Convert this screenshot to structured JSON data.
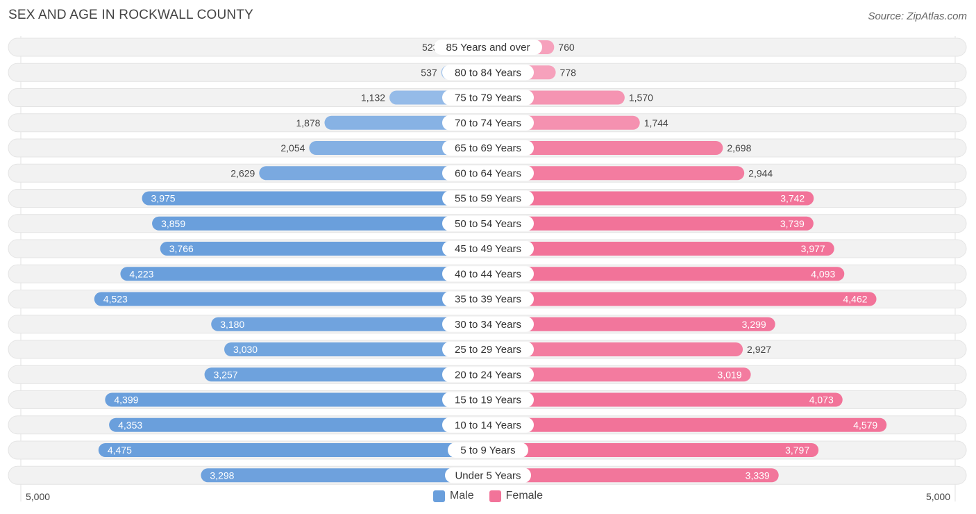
{
  "header": {
    "title": "SEX AND AGE IN ROCKWALL COUNTY",
    "source": "Source: ZipAtlas.com"
  },
  "legend": {
    "male": "Male",
    "female": "Female"
  },
  "axis": {
    "left": "5,000",
    "right": "5,000"
  },
  "colors": {
    "male_strong": "#6a9fdc",
    "male_light": "#a9c8ee",
    "female_strong": "#f27399",
    "female_light": "#f7aec6",
    "row_bg": "#f2f2f2",
    "label_bg": "#ffffff"
  },
  "chart_data": {
    "type": "bar",
    "orientation": "horizontal-diverging",
    "xlim": [
      -5000,
      5000
    ],
    "categories": [
      "85 Years and over",
      "80 to 84 Years",
      "75 to 79 Years",
      "70 to 74 Years",
      "65 to 69 Years",
      "60 to 64 Years",
      "55 to 59 Years",
      "50 to 54 Years",
      "45 to 49 Years",
      "40 to 44 Years",
      "35 to 39 Years",
      "30 to 34 Years",
      "25 to 29 Years",
      "20 to 24 Years",
      "15 to 19 Years",
      "10 to 14 Years",
      "5 to 9 Years",
      "Under 5 Years"
    ],
    "series": [
      {
        "name": "Male",
        "values": [
          523,
          537,
          1132,
          1878,
          2054,
          2629,
          3975,
          3859,
          3766,
          4223,
          4523,
          3180,
          3030,
          3257,
          4399,
          4353,
          4475,
          3298
        ],
        "labels": [
          "523",
          "537",
          "1,132",
          "1,878",
          "2,054",
          "2,629",
          "3,975",
          "3,859",
          "3,766",
          "4,223",
          "4,523",
          "3,180",
          "3,030",
          "3,257",
          "4,399",
          "4,353",
          "4,475",
          "3,298"
        ]
      },
      {
        "name": "Female",
        "values": [
          760,
          778,
          1570,
          1744,
          2698,
          2944,
          3742,
          3739,
          3977,
          4093,
          4462,
          3299,
          2927,
          3019,
          4073,
          4579,
          3797,
          3339
        ],
        "labels": [
          "760",
          "778",
          "1,570",
          "1,744",
          "2,698",
          "2,944",
          "3,742",
          "3,739",
          "3,977",
          "4,093",
          "4,462",
          "3,299",
          "2,927",
          "3,019",
          "4,073",
          "4,579",
          "3,797",
          "3,339"
        ]
      }
    ]
  }
}
